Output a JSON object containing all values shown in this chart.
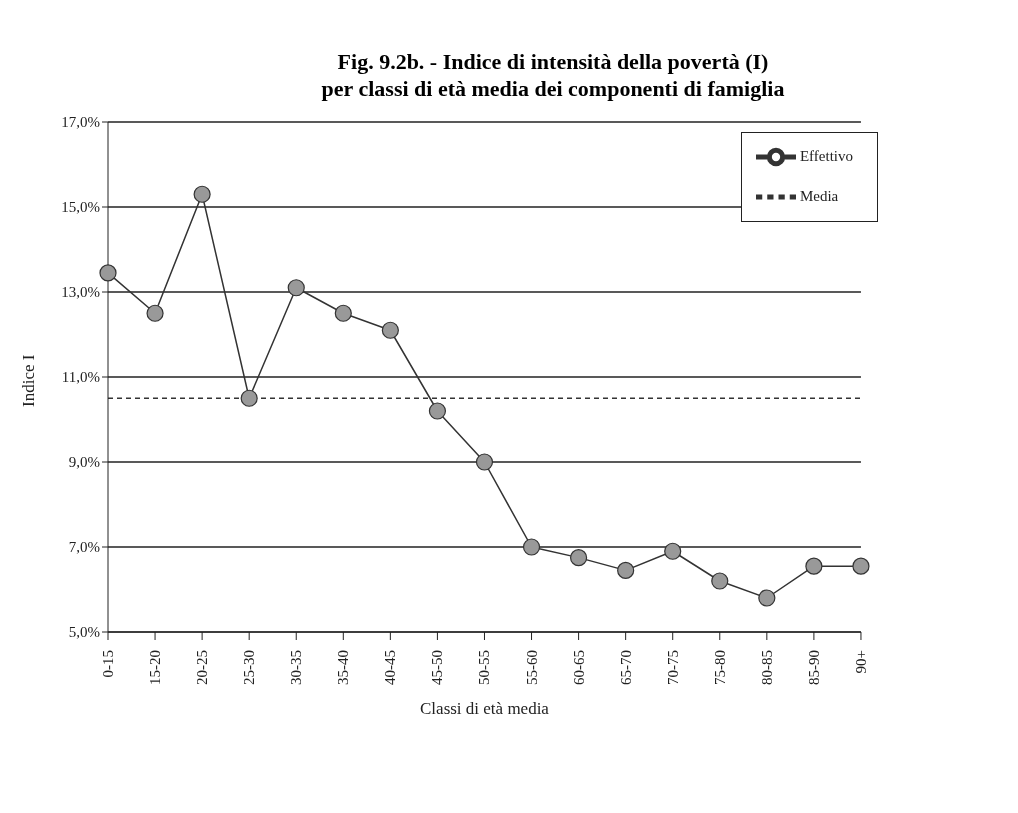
{
  "chart_data": {
    "type": "line",
    "title": "Fig. 9.2b. - Indice di intensità della povertà (I)\nper classi di età media dei componenti di famiglia",
    "xlabel": "Classi di età media",
    "ylabel": "Indice I",
    "categories": [
      "0-15",
      "15-20",
      "20-25",
      "25-30",
      "30-35",
      "35-40",
      "40-45",
      "45-50",
      "50-55",
      "55-60",
      "60-65",
      "65-70",
      "70-75",
      "75-80",
      "80-85",
      "85-90",
      "90+"
    ],
    "series": [
      {
        "name": "Effettivo",
        "color": "#333333",
        "marker": "circle",
        "line_style": "solid",
        "values": [
          13.45,
          12.5,
          15.3,
          10.5,
          13.1,
          12.5,
          12.1,
          10.2,
          9.0,
          7.0,
          6.75,
          6.45,
          6.9,
          6.2,
          5.8,
          6.55,
          6.55
        ]
      },
      {
        "name": "Media",
        "color": "#333333",
        "marker": "none",
        "line_style": "dashed",
        "values": [
          10.5,
          10.5,
          10.5,
          10.5,
          10.5,
          10.5,
          10.5,
          10.5,
          10.5,
          10.5,
          10.5,
          10.5,
          10.5,
          10.5,
          10.5,
          10.5,
          10.5
        ]
      }
    ],
    "ylim": [
      5,
      17
    ],
    "yticks": [
      {
        "value": 5,
        "label": "5,0%"
      },
      {
        "value": 7,
        "label": "7,0%"
      },
      {
        "value": 9,
        "label": "9,0%"
      },
      {
        "value": 11,
        "label": "11,0%"
      },
      {
        "value": 13,
        "label": "13,0%"
      },
      {
        "value": 15,
        "label": "15,0%"
      },
      {
        "value": 17,
        "label": "17,0%"
      }
    ],
    "grid": "y",
    "legend": "top right"
  }
}
